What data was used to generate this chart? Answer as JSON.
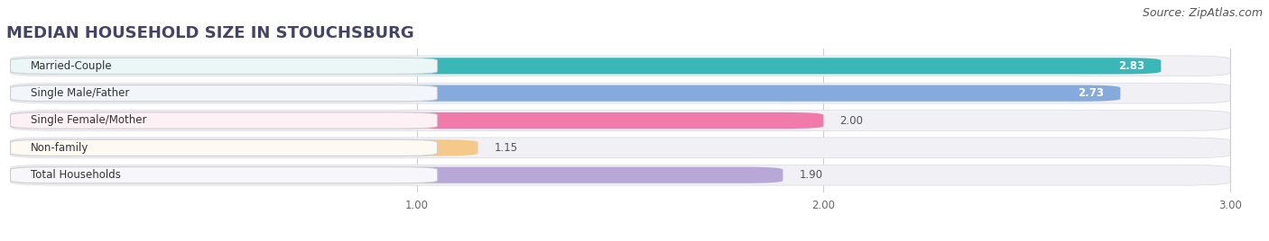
{
  "title": "MEDIAN HOUSEHOLD SIZE IN STOUCHSBURG",
  "source": "Source: ZipAtlas.com",
  "categories": [
    "Married-Couple",
    "Single Male/Father",
    "Single Female/Mother",
    "Non-family",
    "Total Households"
  ],
  "values": [
    2.83,
    2.73,
    2.0,
    1.15,
    1.9
  ],
  "bar_colors": [
    "#3ab8b8",
    "#85aadd",
    "#f07aaa",
    "#f5c98a",
    "#b8a8d8"
  ],
  "bar_edge_colors": [
    "#2a9898",
    "#6090c8",
    "#d06090",
    "#d4a060",
    "#9880c0"
  ],
  "value_inside": [
    true,
    true,
    false,
    false,
    false
  ],
  "xlim": [
    0,
    3.0
  ],
  "xticks": [
    1.0,
    2.0,
    3.0
  ],
  "background_color": "#ffffff",
  "bar_bg_color": "#f0f0f5",
  "title_fontsize": 13,
  "source_fontsize": 9,
  "label_fontsize": 8.5,
  "value_fontsize": 8.5
}
